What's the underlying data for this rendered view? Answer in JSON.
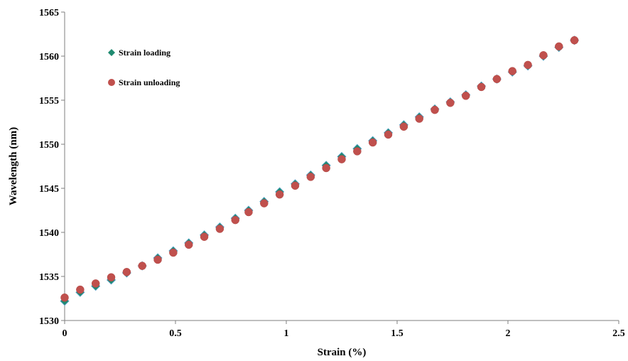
{
  "chart_data": {
    "type": "scatter",
    "title": "",
    "xlabel": "Strain (%)",
    "ylabel": "Wavelength (nm)",
    "xlim": [
      0,
      2.5
    ],
    "ylim": [
      1530,
      1565
    ],
    "x_ticks": [
      "0",
      "0.5",
      "1",
      "1.5",
      "2",
      "2.5"
    ],
    "y_ticks": [
      "1530",
      "1535",
      "1540",
      "1545",
      "1550",
      "1555",
      "1560",
      "1565"
    ],
    "grid": false,
    "legend_position": "top-left",
    "series": [
      {
        "name": "Strain loading",
        "marker": "diamond",
        "color": "#1f8a70",
        "points": [
          [
            0.0,
            1532.2
          ],
          [
            0.07,
            1533.2
          ],
          [
            0.14,
            1533.9
          ],
          [
            0.21,
            1534.6
          ],
          [
            0.28,
            1535.4
          ],
          [
            0.35,
            1536.2
          ],
          [
            0.42,
            1537.1
          ],
          [
            0.49,
            1537.9
          ],
          [
            0.56,
            1538.8
          ],
          [
            0.63,
            1539.7
          ],
          [
            0.7,
            1540.6
          ],
          [
            0.77,
            1541.6
          ],
          [
            0.83,
            1542.5
          ],
          [
            0.9,
            1543.5
          ],
          [
            0.97,
            1544.6
          ],
          [
            1.04,
            1545.5
          ],
          [
            1.11,
            1546.5
          ],
          [
            1.18,
            1547.6
          ],
          [
            1.25,
            1548.6
          ],
          [
            1.32,
            1549.5
          ],
          [
            1.39,
            1550.4
          ],
          [
            1.46,
            1551.3
          ],
          [
            1.53,
            1552.2
          ],
          [
            1.6,
            1553.1
          ],
          [
            1.67,
            1554.0
          ],
          [
            1.74,
            1554.8
          ],
          [
            1.81,
            1555.6
          ],
          [
            1.88,
            1556.6
          ],
          [
            1.95,
            1557.4
          ],
          [
            2.02,
            1558.2
          ],
          [
            2.09,
            1558.9
          ],
          [
            2.16,
            1560.0
          ],
          [
            2.23,
            1561.0
          ],
          [
            2.3,
            1561.8
          ]
        ]
      },
      {
        "name": "Strain unloading",
        "marker": "circle",
        "color": "#c0504d",
        "points": [
          [
            0.0,
            1532.6
          ],
          [
            0.07,
            1533.5
          ],
          [
            0.14,
            1534.2
          ],
          [
            0.21,
            1534.9
          ],
          [
            0.28,
            1535.5
          ],
          [
            0.35,
            1536.2
          ],
          [
            0.42,
            1536.9
          ],
          [
            0.49,
            1537.7
          ],
          [
            0.56,
            1538.6
          ],
          [
            0.63,
            1539.5
          ],
          [
            0.7,
            1540.4
          ],
          [
            0.77,
            1541.4
          ],
          [
            0.83,
            1542.3
          ],
          [
            0.9,
            1543.3
          ],
          [
            0.97,
            1544.3
          ],
          [
            1.04,
            1545.3
          ],
          [
            1.11,
            1546.3
          ],
          [
            1.18,
            1547.3
          ],
          [
            1.25,
            1548.3
          ],
          [
            1.32,
            1549.2
          ],
          [
            1.39,
            1550.2
          ],
          [
            1.46,
            1551.1
          ],
          [
            1.53,
            1552.0
          ],
          [
            1.6,
            1552.9
          ],
          [
            1.67,
            1553.9
          ],
          [
            1.74,
            1554.7
          ],
          [
            1.81,
            1555.5
          ],
          [
            1.88,
            1556.5
          ],
          [
            1.95,
            1557.4
          ],
          [
            2.02,
            1558.3
          ],
          [
            2.09,
            1559.0
          ],
          [
            2.16,
            1560.1
          ],
          [
            2.23,
            1561.1
          ],
          [
            2.3,
            1561.8
          ]
        ]
      }
    ]
  }
}
